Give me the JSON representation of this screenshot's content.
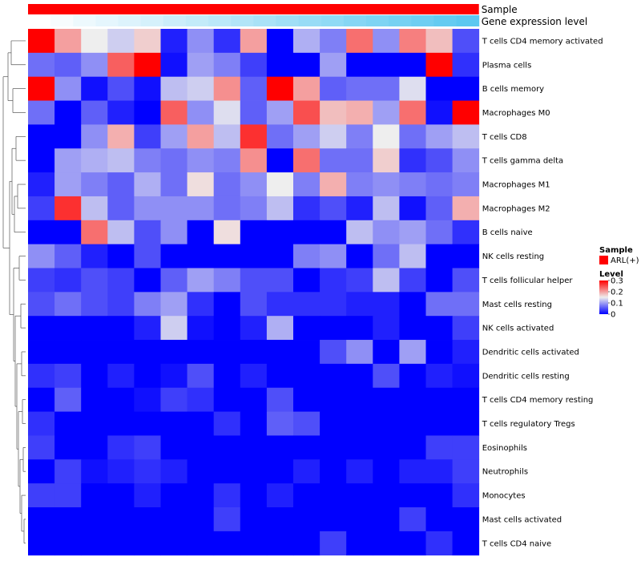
{
  "chart_data": {
    "type": "heatmap",
    "annotation_rows": [
      "Sample",
      "Gene expression level"
    ],
    "annotation_colors": {
      "sample": "#ff0000"
    },
    "gene_expression_level": [
      0.0,
      0.05,
      0.11,
      0.16,
      0.21,
      0.26,
      0.32,
      0.37,
      0.42,
      0.47,
      0.53,
      0.58,
      0.63,
      0.68,
      0.74,
      0.79,
      0.84,
      0.89,
      0.95,
      1.0
    ],
    "row_labels": [
      "T cells CD4 memory activated",
      "Plasma cells",
      "B cells memory",
      "Macrophages M0",
      "T cells CD8",
      "T cells gamma delta",
      "Macrophages M1",
      "Macrophages M2",
      "B cells naive",
      "NK cells resting",
      "T cells follicular helper",
      "Mast cells resting",
      "NK cells activated",
      "Dendritic cells activated",
      "Dendritic cells resting",
      "T cells CD4 memory resting",
      "T cells regulatory  Tregs",
      "Eosinophils",
      "Neutrophils",
      "Monocytes",
      "Mast cells activated",
      "T cells CD4 naive"
    ],
    "values": [
      [
        0.3,
        0.2,
        0.15,
        0.13,
        0.17,
        0.02,
        0.09,
        0.03,
        0.2,
        0.0,
        0.11,
        0.08,
        0.23,
        0.09,
        0.22,
        0.18,
        0.05
      ],
      [
        0.07,
        0.06,
        0.09,
        0.24,
        0.3,
        0.01,
        0.1,
        0.08,
        0.04,
        0.0,
        0.0,
        0.1,
        0.0,
        0.0,
        0.0,
        0.3,
        0.03
      ],
      [
        0.3,
        0.09,
        0.01,
        0.05,
        0.01,
        0.12,
        0.13,
        0.21,
        0.06,
        0.3,
        0.2,
        0.06,
        0.07,
        0.07,
        0.14,
        0.0,
        0.0
      ],
      [
        0.07,
        0.0,
        0.06,
        0.02,
        0.0,
        0.24,
        0.09,
        0.14,
        0.06,
        0.1,
        0.25,
        0.18,
        0.19,
        0.1,
        0.23,
        0.01,
        0.3
      ],
      [
        0.0,
        0.0,
        0.09,
        0.19,
        0.04,
        0.1,
        0.2,
        0.12,
        0.27,
        0.07,
        0.1,
        0.13,
        0.08,
        0.15,
        0.07,
        0.1,
        0.12
      ],
      [
        0.0,
        0.1,
        0.11,
        0.12,
        0.08,
        0.07,
        0.09,
        0.08,
        0.21,
        0.0,
        0.23,
        0.07,
        0.07,
        0.17,
        0.03,
        0.05,
        0.09
      ],
      [
        0.02,
        0.1,
        0.08,
        0.06,
        0.11,
        0.07,
        0.16,
        0.07,
        0.09,
        0.15,
        0.08,
        0.19,
        0.08,
        0.09,
        0.08,
        0.07,
        0.08
      ],
      [
        0.04,
        0.27,
        0.12,
        0.06,
        0.09,
        0.09,
        0.09,
        0.07,
        0.08,
        0.12,
        0.03,
        0.05,
        0.02,
        0.12,
        0.01,
        0.06,
        0.19
      ],
      [
        0.0,
        0.0,
        0.23,
        0.12,
        0.05,
        0.09,
        0.0,
        0.16,
        0.0,
        0.0,
        0.0,
        0.0,
        0.12,
        0.09,
        0.1,
        0.07,
        0.03
      ],
      [
        0.09,
        0.06,
        0.02,
        0.0,
        0.05,
        0.0,
        0.0,
        0.0,
        0.0,
        0.0,
        0.08,
        0.09,
        0.0,
        0.07,
        0.12,
        0.0,
        0.0
      ],
      [
        0.04,
        0.03,
        0.05,
        0.04,
        0.0,
        0.06,
        0.1,
        0.08,
        0.05,
        0.05,
        0.0,
        0.03,
        0.04,
        0.12,
        0.04,
        0.0,
        0.05
      ],
      [
        0.05,
        0.07,
        0.05,
        0.04,
        0.08,
        0.1,
        0.03,
        0.0,
        0.05,
        0.03,
        0.03,
        0.03,
        0.02,
        0.02,
        0.0,
        0.07,
        0.07
      ],
      [
        0.0,
        0.0,
        0.0,
        0.0,
        0.02,
        0.13,
        0.01,
        0.0,
        0.02,
        0.11,
        0.0,
        0.0,
        0.0,
        0.02,
        0.0,
        0.0,
        0.04
      ],
      [
        0.0,
        0.0,
        0.0,
        0.0,
        0.0,
        0.0,
        0.0,
        0.0,
        0.0,
        0.0,
        0.0,
        0.05,
        0.09,
        0.0,
        0.1,
        0.0,
        0.02
      ],
      [
        0.03,
        0.04,
        0.0,
        0.02,
        0.0,
        0.01,
        0.05,
        0.0,
        0.02,
        0.0,
        0.0,
        0.0,
        0.0,
        0.05,
        0.0,
        0.02,
        0.01
      ],
      [
        0.0,
        0.06,
        0.0,
        0.0,
        0.01,
        0.04,
        0.03,
        0.0,
        0.0,
        0.05,
        0.0,
        0.0,
        0.0,
        0.0,
        0.0,
        0.0,
        0.0
      ],
      [
        0.03,
        0.0,
        0.0,
        0.0,
        0.0,
        0.0,
        0.0,
        0.03,
        0.0,
        0.06,
        0.05,
        0.0,
        0.0,
        0.0,
        0.0,
        0.0,
        0.0
      ],
      [
        0.04,
        0.0,
        0.0,
        0.03,
        0.04,
        0.0,
        0.0,
        0.0,
        0.0,
        0.0,
        0.0,
        0.0,
        0.0,
        0.0,
        0.0,
        0.04,
        0.04
      ],
      [
        0.0,
        0.04,
        0.01,
        0.02,
        0.03,
        0.02,
        0.0,
        0.0,
        0.0,
        0.0,
        0.02,
        0.0,
        0.02,
        0.0,
        0.02,
        0.02,
        0.04
      ],
      [
        0.04,
        0.04,
        0.0,
        0.0,
        0.02,
        0.0,
        0.0,
        0.03,
        0.0,
        0.02,
        0.0,
        0.0,
        0.0,
        0.0,
        0.0,
        0.0,
        0.03
      ],
      [
        0.0,
        0.0,
        0.0,
        0.0,
        0.0,
        0.0,
        0.0,
        0.04,
        0.0,
        0.0,
        0.0,
        0.0,
        0.0,
        0.0,
        0.04,
        0.0,
        0.0
      ],
      [
        0.0,
        0.0,
        0.0,
        0.0,
        0.0,
        0.0,
        0.0,
        0.0,
        0.0,
        0.0,
        0.0,
        0.04,
        0.0,
        0.0,
        0.0,
        0.03,
        0.0
      ]
    ],
    "color_scale": {
      "low": "#0000ff",
      "mid": "#eeeeee",
      "high": "#ff0000",
      "min": 0,
      "max": 0.3
    },
    "dendrogram": "row clustering tree drawn on left",
    "legend": {
      "sample_title": "Sample",
      "sample_entry": "ARL(+)",
      "level_title": "Level",
      "ticks": [
        "0.3",
        "0.2",
        "0.1",
        "0"
      ],
      "tick_values": [
        0.3,
        0.2,
        0.1,
        0
      ]
    }
  }
}
